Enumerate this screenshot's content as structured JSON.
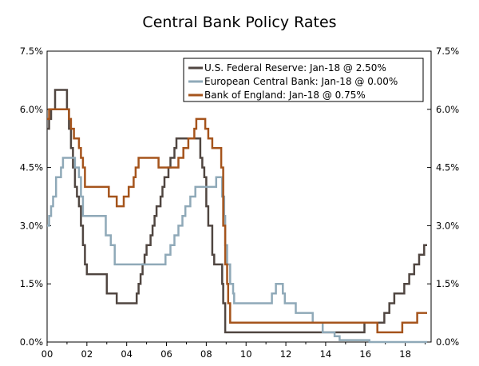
{
  "chart_data": {
    "type": "line",
    "title": "Central Bank Policy Rates",
    "xlabel": "",
    "ylabel": "",
    "x_start": 2000,
    "x_end": 2019.3,
    "ylim": [
      0,
      7.5
    ],
    "y_ticks": [
      0,
      1.5,
      3.0,
      4.5,
      6.0,
      7.5
    ],
    "y_tick_labels": [
      "0.0%",
      "1.5%",
      "3.0%",
      "4.5%",
      "6.0%",
      "7.5%"
    ],
    "x_ticks": [
      2000,
      2002,
      2004,
      2006,
      2008,
      2010,
      2012,
      2014,
      2016,
      2018
    ],
    "x_tick_labels": [
      "00",
      "02",
      "04",
      "06",
      "08",
      "10",
      "12",
      "14",
      "16",
      "18"
    ],
    "grid": false,
    "legend_position": "top-right",
    "series": [
      {
        "name": "U.S. Federal Reserve: Jan-18 @ 2.50%",
        "color": "#504641",
        "points": [
          [
            2000.0,
            5.5
          ],
          [
            2000.1,
            5.75
          ],
          [
            2000.2,
            6.0
          ],
          [
            2000.4,
            6.5
          ],
          [
            2001.0,
            6.0
          ],
          [
            2001.1,
            5.5
          ],
          [
            2001.2,
            5.0
          ],
          [
            2001.3,
            4.5
          ],
          [
            2001.4,
            4.0
          ],
          [
            2001.5,
            3.75
          ],
          [
            2001.6,
            3.5
          ],
          [
            2001.7,
            3.0
          ],
          [
            2001.8,
            2.5
          ],
          [
            2001.9,
            2.0
          ],
          [
            2002.0,
            1.75
          ],
          [
            2003.0,
            1.25
          ],
          [
            2003.5,
            1.0
          ],
          [
            2004.5,
            1.25
          ],
          [
            2004.6,
            1.5
          ],
          [
            2004.7,
            1.75
          ],
          [
            2004.8,
            2.0
          ],
          [
            2004.9,
            2.25
          ],
          [
            2005.0,
            2.5
          ],
          [
            2005.2,
            2.75
          ],
          [
            2005.3,
            3.0
          ],
          [
            2005.4,
            3.25
          ],
          [
            2005.5,
            3.5
          ],
          [
            2005.7,
            3.75
          ],
          [
            2005.8,
            4.0
          ],
          [
            2005.9,
            4.25
          ],
          [
            2006.1,
            4.5
          ],
          [
            2006.2,
            4.75
          ],
          [
            2006.4,
            5.0
          ],
          [
            2006.5,
            5.25
          ],
          [
            2007.7,
            4.75
          ],
          [
            2007.8,
            4.5
          ],
          [
            2007.9,
            4.25
          ],
          [
            2008.0,
            3.5
          ],
          [
            2008.1,
            3.0
          ],
          [
            2008.3,
            2.25
          ],
          [
            2008.4,
            2.0
          ],
          [
            2008.8,
            1.5
          ],
          [
            2008.85,
            1.0
          ],
          [
            2008.95,
            0.25
          ],
          [
            2015.95,
            0.5
          ],
          [
            2016.95,
            0.75
          ],
          [
            2017.2,
            1.0
          ],
          [
            2017.45,
            1.25
          ],
          [
            2017.95,
            1.5
          ],
          [
            2018.2,
            1.75
          ],
          [
            2018.45,
            2.0
          ],
          [
            2018.7,
            2.25
          ],
          [
            2018.95,
            2.5
          ],
          [
            2019.1,
            2.5
          ]
        ]
      },
      {
        "name": "European Central Bank: Jan-18 @ 0.00%",
        "color": "#8fa9b8",
        "points": [
          [
            2000.0,
            3.0
          ],
          [
            2000.1,
            3.25
          ],
          [
            2000.2,
            3.5
          ],
          [
            2000.3,
            3.75
          ],
          [
            2000.45,
            4.25
          ],
          [
            2000.7,
            4.5
          ],
          [
            2000.8,
            4.75
          ],
          [
            2001.4,
            4.5
          ],
          [
            2001.6,
            4.25
          ],
          [
            2001.7,
            3.75
          ],
          [
            2001.8,
            3.25
          ],
          [
            2002.95,
            2.75
          ],
          [
            2003.2,
            2.5
          ],
          [
            2003.4,
            2.0
          ],
          [
            2005.95,
            2.25
          ],
          [
            2006.2,
            2.5
          ],
          [
            2006.4,
            2.75
          ],
          [
            2006.6,
            3.0
          ],
          [
            2006.8,
            3.25
          ],
          [
            2006.95,
            3.5
          ],
          [
            2007.2,
            3.75
          ],
          [
            2007.45,
            4.0
          ],
          [
            2008.5,
            4.25
          ],
          [
            2008.8,
            3.75
          ],
          [
            2008.9,
            3.25
          ],
          [
            2008.95,
            2.5
          ],
          [
            2009.05,
            2.0
          ],
          [
            2009.2,
            1.5
          ],
          [
            2009.35,
            1.25
          ],
          [
            2009.4,
            1.0
          ],
          [
            2011.3,
            1.25
          ],
          [
            2011.5,
            1.5
          ],
          [
            2011.85,
            1.25
          ],
          [
            2011.95,
            1.0
          ],
          [
            2012.5,
            0.75
          ],
          [
            2013.35,
            0.5
          ],
          [
            2013.85,
            0.25
          ],
          [
            2014.45,
            0.15
          ],
          [
            2014.7,
            0.05
          ],
          [
            2016.2,
            0.0
          ],
          [
            2019.1,
            0.0
          ]
        ]
      },
      {
        "name": "Bank of England: Jan-18 @ 0.75%",
        "color": "#a5541c",
        "points": [
          [
            2000.0,
            5.75
          ],
          [
            2000.1,
            6.0
          ],
          [
            2001.1,
            5.75
          ],
          [
            2001.2,
            5.5
          ],
          [
            2001.35,
            5.25
          ],
          [
            2001.6,
            5.0
          ],
          [
            2001.7,
            4.75
          ],
          [
            2001.8,
            4.5
          ],
          [
            2001.9,
            4.0
          ],
          [
            2003.1,
            3.75
          ],
          [
            2003.5,
            3.5
          ],
          [
            2003.85,
            3.75
          ],
          [
            2004.1,
            4.0
          ],
          [
            2004.35,
            4.25
          ],
          [
            2004.45,
            4.5
          ],
          [
            2004.6,
            4.75
          ],
          [
            2005.6,
            4.5
          ],
          [
            2006.6,
            4.75
          ],
          [
            2006.85,
            5.0
          ],
          [
            2007.1,
            5.25
          ],
          [
            2007.4,
            5.5
          ],
          [
            2007.5,
            5.75
          ],
          [
            2007.95,
            5.5
          ],
          [
            2008.1,
            5.25
          ],
          [
            2008.3,
            5.0
          ],
          [
            2008.75,
            4.5
          ],
          [
            2008.85,
            3.0
          ],
          [
            2008.95,
            2.0
          ],
          [
            2009.05,
            1.5
          ],
          [
            2009.1,
            1.0
          ],
          [
            2009.2,
            0.5
          ],
          [
            2016.6,
            0.25
          ],
          [
            2017.85,
            0.5
          ],
          [
            2018.6,
            0.75
          ],
          [
            2019.1,
            0.75
          ]
        ]
      }
    ]
  }
}
